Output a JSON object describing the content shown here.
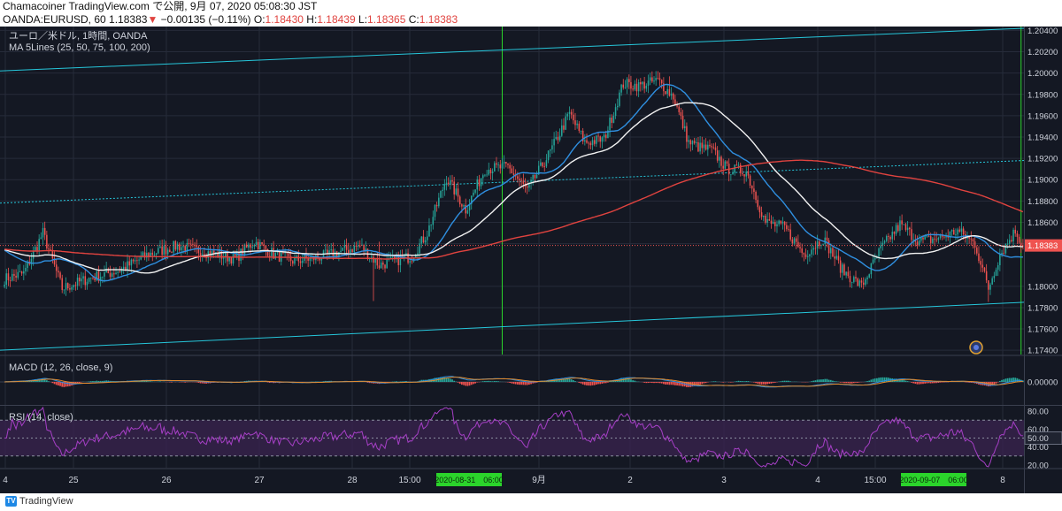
{
  "header": {
    "line1": "Chamacoiner TradingView.com で公開, 9月 07, 2020 05:08:30 JST",
    "symbol": "OANDA:EURUSD, 60",
    "last": "1.18383",
    "arrow": "▼",
    "change": "−0.00135 (−0.11%)",
    "o_label": "O:",
    "o": "1.18430",
    "h_label": "H:",
    "h": "1.18439",
    "l_label": "L:",
    "l": "1.18365",
    "c_label": "C:",
    "c": "1.18383"
  },
  "legend": {
    "title": "ユーロ／米ドル, 1時間, OANDA",
    "ma": "MA 5Lines (25, 50, 75, 100, 200)",
    "macd": "MACD (12, 26, close, 9)",
    "rsi": "RSI (14, close)"
  },
  "colors": {
    "background": "#141823",
    "grid": "#262b3a",
    "up": "#26a69a",
    "down": "#ef5350",
    "ma_blue": "#2f8fe0",
    "ma_white": "#f2f2f2",
    "ma_red": "#e0433f",
    "channel": "#26c6da",
    "vertical": "#2bd42b",
    "rsi_line": "#a63fc6",
    "rsi_band": "#3a2350"
  },
  "chart_data": [
    {
      "type": "candlestick",
      "title": "ユーロ／米ドル, 1時間, OANDA",
      "y_ticks": [
        "1.20400",
        "1.20200",
        "1.20000",
        "1.19800",
        "1.19600",
        "1.19400",
        "1.19200",
        "1.19000",
        "1.18800",
        "1.18600",
        "1.18400",
        "1.18000",
        "1.17800",
        "1.17600",
        "1.17400"
      ],
      "y_range": [
        1.1736,
        1.2042
      ],
      "last_price_label": "1.18383",
      "last_price": 1.18383,
      "x_ticks": [
        "4",
        "25",
        "26",
        "27",
        "28",
        "15:00",
        "9月",
        "2",
        "3",
        "4",
        "15:00",
        "8"
      ],
      "x_highlight_labels": [
        "2020-08-31　06:00",
        "2020-09-07　06:00"
      ],
      "ohlc": {
        "start_close": 1.1807,
        "closes_summary": "hourly EUR/USD from Aug 24 to Sep 7 2020; rally to ~1.2010 on Sep 1 then decline to ~1.1838",
        "anchors": [
          [
            0,
            1.1807
          ],
          [
            10,
            1.1812
          ],
          [
            20,
            1.185
          ],
          [
            30,
            1.1798
          ],
          [
            45,
            1.1808
          ],
          [
            60,
            1.1815
          ],
          [
            75,
            1.183
          ],
          [
            90,
            1.1838
          ],
          [
            105,
            1.1832
          ],
          [
            120,
            1.1826
          ],
          [
            130,
            1.1842
          ],
          [
            140,
            1.183
          ],
          [
            150,
            1.1824
          ],
          [
            160,
            1.1826
          ],
          [
            170,
            1.183
          ],
          [
            185,
            1.1838
          ],
          [
            195,
            1.182
          ],
          [
            205,
            1.1825
          ],
          [
            212,
            1.1828
          ],
          [
            220,
            1.185
          ],
          [
            230,
            1.1902
          ],
          [
            240,
            1.1872
          ],
          [
            250,
            1.191
          ],
          [
            262,
            1.1912
          ],
          [
            272,
            1.189
          ],
          [
            284,
            1.1926
          ],
          [
            294,
            1.1962
          ],
          [
            302,
            1.1935
          ],
          [
            312,
            1.1938
          ],
          [
            322,
            1.199
          ],
          [
            330,
            1.1988
          ],
          [
            340,
            1.1993
          ],
          [
            348,
            1.1978
          ],
          [
            356,
            1.1935
          ],
          [
            362,
            1.193
          ],
          [
            368,
            1.1928
          ],
          [
            376,
            1.191
          ],
          [
            386,
            1.1908
          ],
          [
            396,
            1.186
          ],
          [
            406,
            1.1855
          ],
          [
            416,
            1.183
          ],
          [
            426,
            1.1845
          ],
          [
            436,
            1.1815
          ],
          [
            446,
            1.18
          ],
          [
            456,
            1.1835
          ],
          [
            466,
            1.1858
          ],
          [
            476,
            1.1842
          ],
          [
            486,
            1.1845
          ],
          [
            496,
            1.1852
          ],
          [
            505,
            1.184
          ],
          [
            512,
            1.1798
          ],
          [
            518,
            1.183
          ],
          [
            526,
            1.1852
          ],
          [
            530,
            1.1838
          ]
        ]
      },
      "moving_averages": [
        {
          "period": 25,
          "color": "#2f8fe0"
        },
        {
          "period": 50,
          "color": "#f2f2f2"
        },
        {
          "period": 200,
          "color": "#e0433f"
        }
      ],
      "channel": {
        "upper": [
          [
            0,
            1.2002
          ],
          [
            530,
            1.2042
          ]
        ],
        "middle_dotted": [
          [
            0,
            1.1878
          ],
          [
            530,
            1.1918
          ]
        ],
        "lower": [
          [
            0,
            1.174
          ],
          [
            530,
            1.1785
          ]
        ]
      },
      "vertical_lines_at": [
        "2020-08-31　06:00",
        "2020-09-07　06:00"
      ],
      "indicator_circle": true
    },
    {
      "type": "bar",
      "title": "MACD (12, 26, close, 9)",
      "y_ticks": [
        "0.00000"
      ],
      "series": [
        {
          "name": "MACD",
          "color": "#2f8fe0"
        },
        {
          "name": "signal",
          "color": "#e08a2f"
        },
        {
          "name": "histogram",
          "color_up": "#26a69a",
          "color_down": "#ef5350"
        }
      ]
    },
    {
      "type": "line",
      "title": "RSI (14, close)",
      "y_ticks": [
        "80.00",
        "60.00",
        "50.00",
        "40.00",
        "20.00"
      ],
      "bands": [
        30,
        70
      ],
      "middle": 50,
      "y_range": [
        17,
        85
      ]
    }
  ],
  "footer": {
    "brand": "TradingView"
  }
}
